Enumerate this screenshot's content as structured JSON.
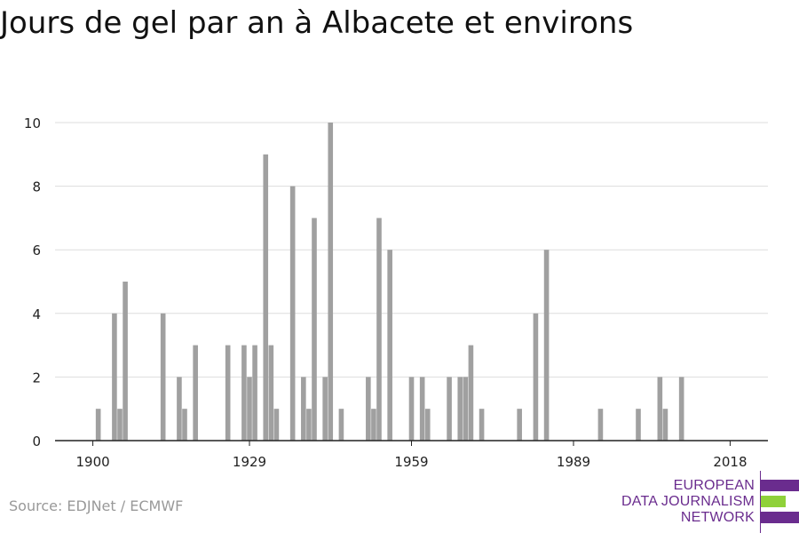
{
  "title": "Jours de gel par an à Albacete et environs",
  "source": "Source: EDJNet / ECMWF",
  "logo": {
    "lines": [
      "EUROPEAN",
      "DATA JOURNALISM",
      "NETWORK"
    ],
    "colors": {
      "purple": "#6a2c8e",
      "green": "#8fd13a"
    }
  },
  "chart_data": {
    "type": "bar",
    "title": "Jours de gel par an à Albacete et environs",
    "xlabel": "",
    "ylabel": "",
    "xlim": [
      1893,
      2025
    ],
    "ylim": [
      0,
      10
    ],
    "x_ticks": [
      1900,
      1929,
      1959,
      1989,
      2018
    ],
    "y_ticks": [
      0,
      2,
      4,
      6,
      8,
      10
    ],
    "grid": true,
    "bar_color": "#a0a0a0",
    "points": [
      {
        "x": 1901,
        "y": 1
      },
      {
        "x": 1904,
        "y": 4
      },
      {
        "x": 1905,
        "y": 1
      },
      {
        "x": 1906,
        "y": 5
      },
      {
        "x": 1913,
        "y": 4
      },
      {
        "x": 1916,
        "y": 2
      },
      {
        "x": 1917,
        "y": 1
      },
      {
        "x": 1919,
        "y": 3
      },
      {
        "x": 1925,
        "y": 3
      },
      {
        "x": 1928,
        "y": 3
      },
      {
        "x": 1929,
        "y": 2
      },
      {
        "x": 1930,
        "y": 3
      },
      {
        "x": 1932,
        "y": 9
      },
      {
        "x": 1933,
        "y": 3
      },
      {
        "x": 1934,
        "y": 1
      },
      {
        "x": 1937,
        "y": 8
      },
      {
        "x": 1939,
        "y": 2
      },
      {
        "x": 1940,
        "y": 1
      },
      {
        "x": 1941,
        "y": 7
      },
      {
        "x": 1943,
        "y": 2
      },
      {
        "x": 1944,
        "y": 10
      },
      {
        "x": 1946,
        "y": 1
      },
      {
        "x": 1951,
        "y": 2
      },
      {
        "x": 1952,
        "y": 1
      },
      {
        "x": 1953,
        "y": 7
      },
      {
        "x": 1955,
        "y": 6
      },
      {
        "x": 1959,
        "y": 2
      },
      {
        "x": 1961,
        "y": 2
      },
      {
        "x": 1962,
        "y": 1
      },
      {
        "x": 1966,
        "y": 2
      },
      {
        "x": 1968,
        "y": 2
      },
      {
        "x": 1969,
        "y": 2
      },
      {
        "x": 1970,
        "y": 3
      },
      {
        "x": 1972,
        "y": 1
      },
      {
        "x": 1979,
        "y": 1
      },
      {
        "x": 1982,
        "y": 4
      },
      {
        "x": 1984,
        "y": 6
      },
      {
        "x": 1994,
        "y": 1
      },
      {
        "x": 2001,
        "y": 1
      },
      {
        "x": 2005,
        "y": 2
      },
      {
        "x": 2006,
        "y": 1
      },
      {
        "x": 2009,
        "y": 2
      }
    ]
  }
}
